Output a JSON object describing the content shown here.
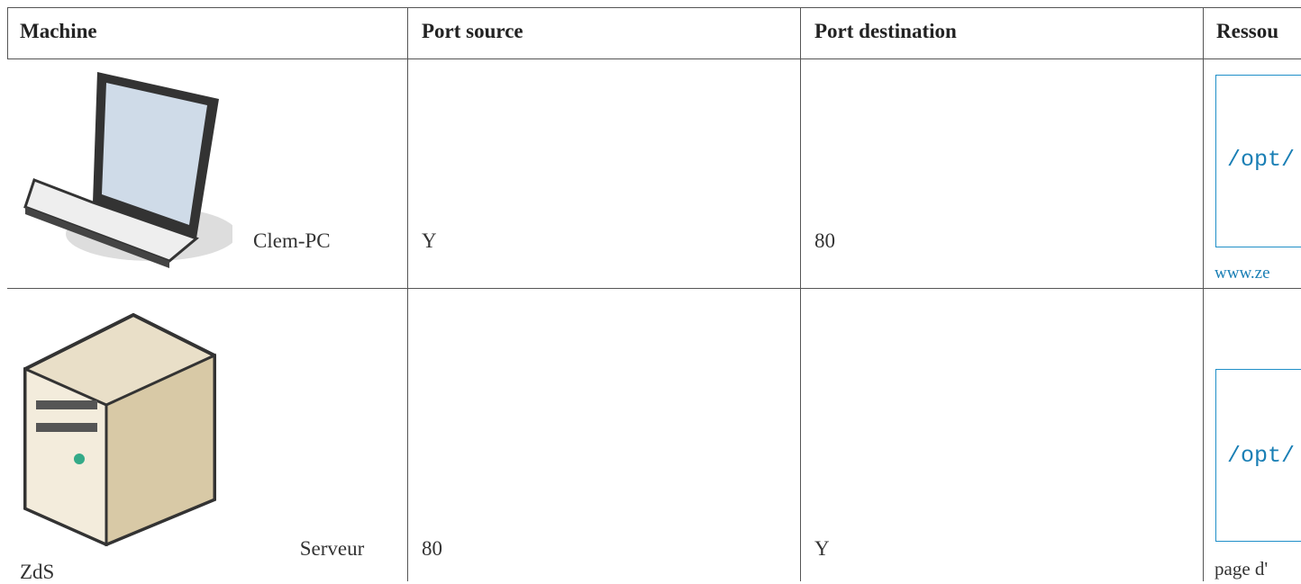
{
  "table": {
    "header": [
      "Machine",
      "Port source",
      "Port destination",
      "Ressou"
    ],
    "rows": [
      {
        "machine": "Clem-PC",
        "port_source": "Y",
        "port_destination": "80",
        "resource_path": "/opt/",
        "resource_link": "www.ze"
      },
      {
        "machine": "Serveur ZdS",
        "port_source": "80",
        "port_destination": "Y",
        "resource_path": "/opt/",
        "resource_link": "page d'"
      }
    ]
  }
}
